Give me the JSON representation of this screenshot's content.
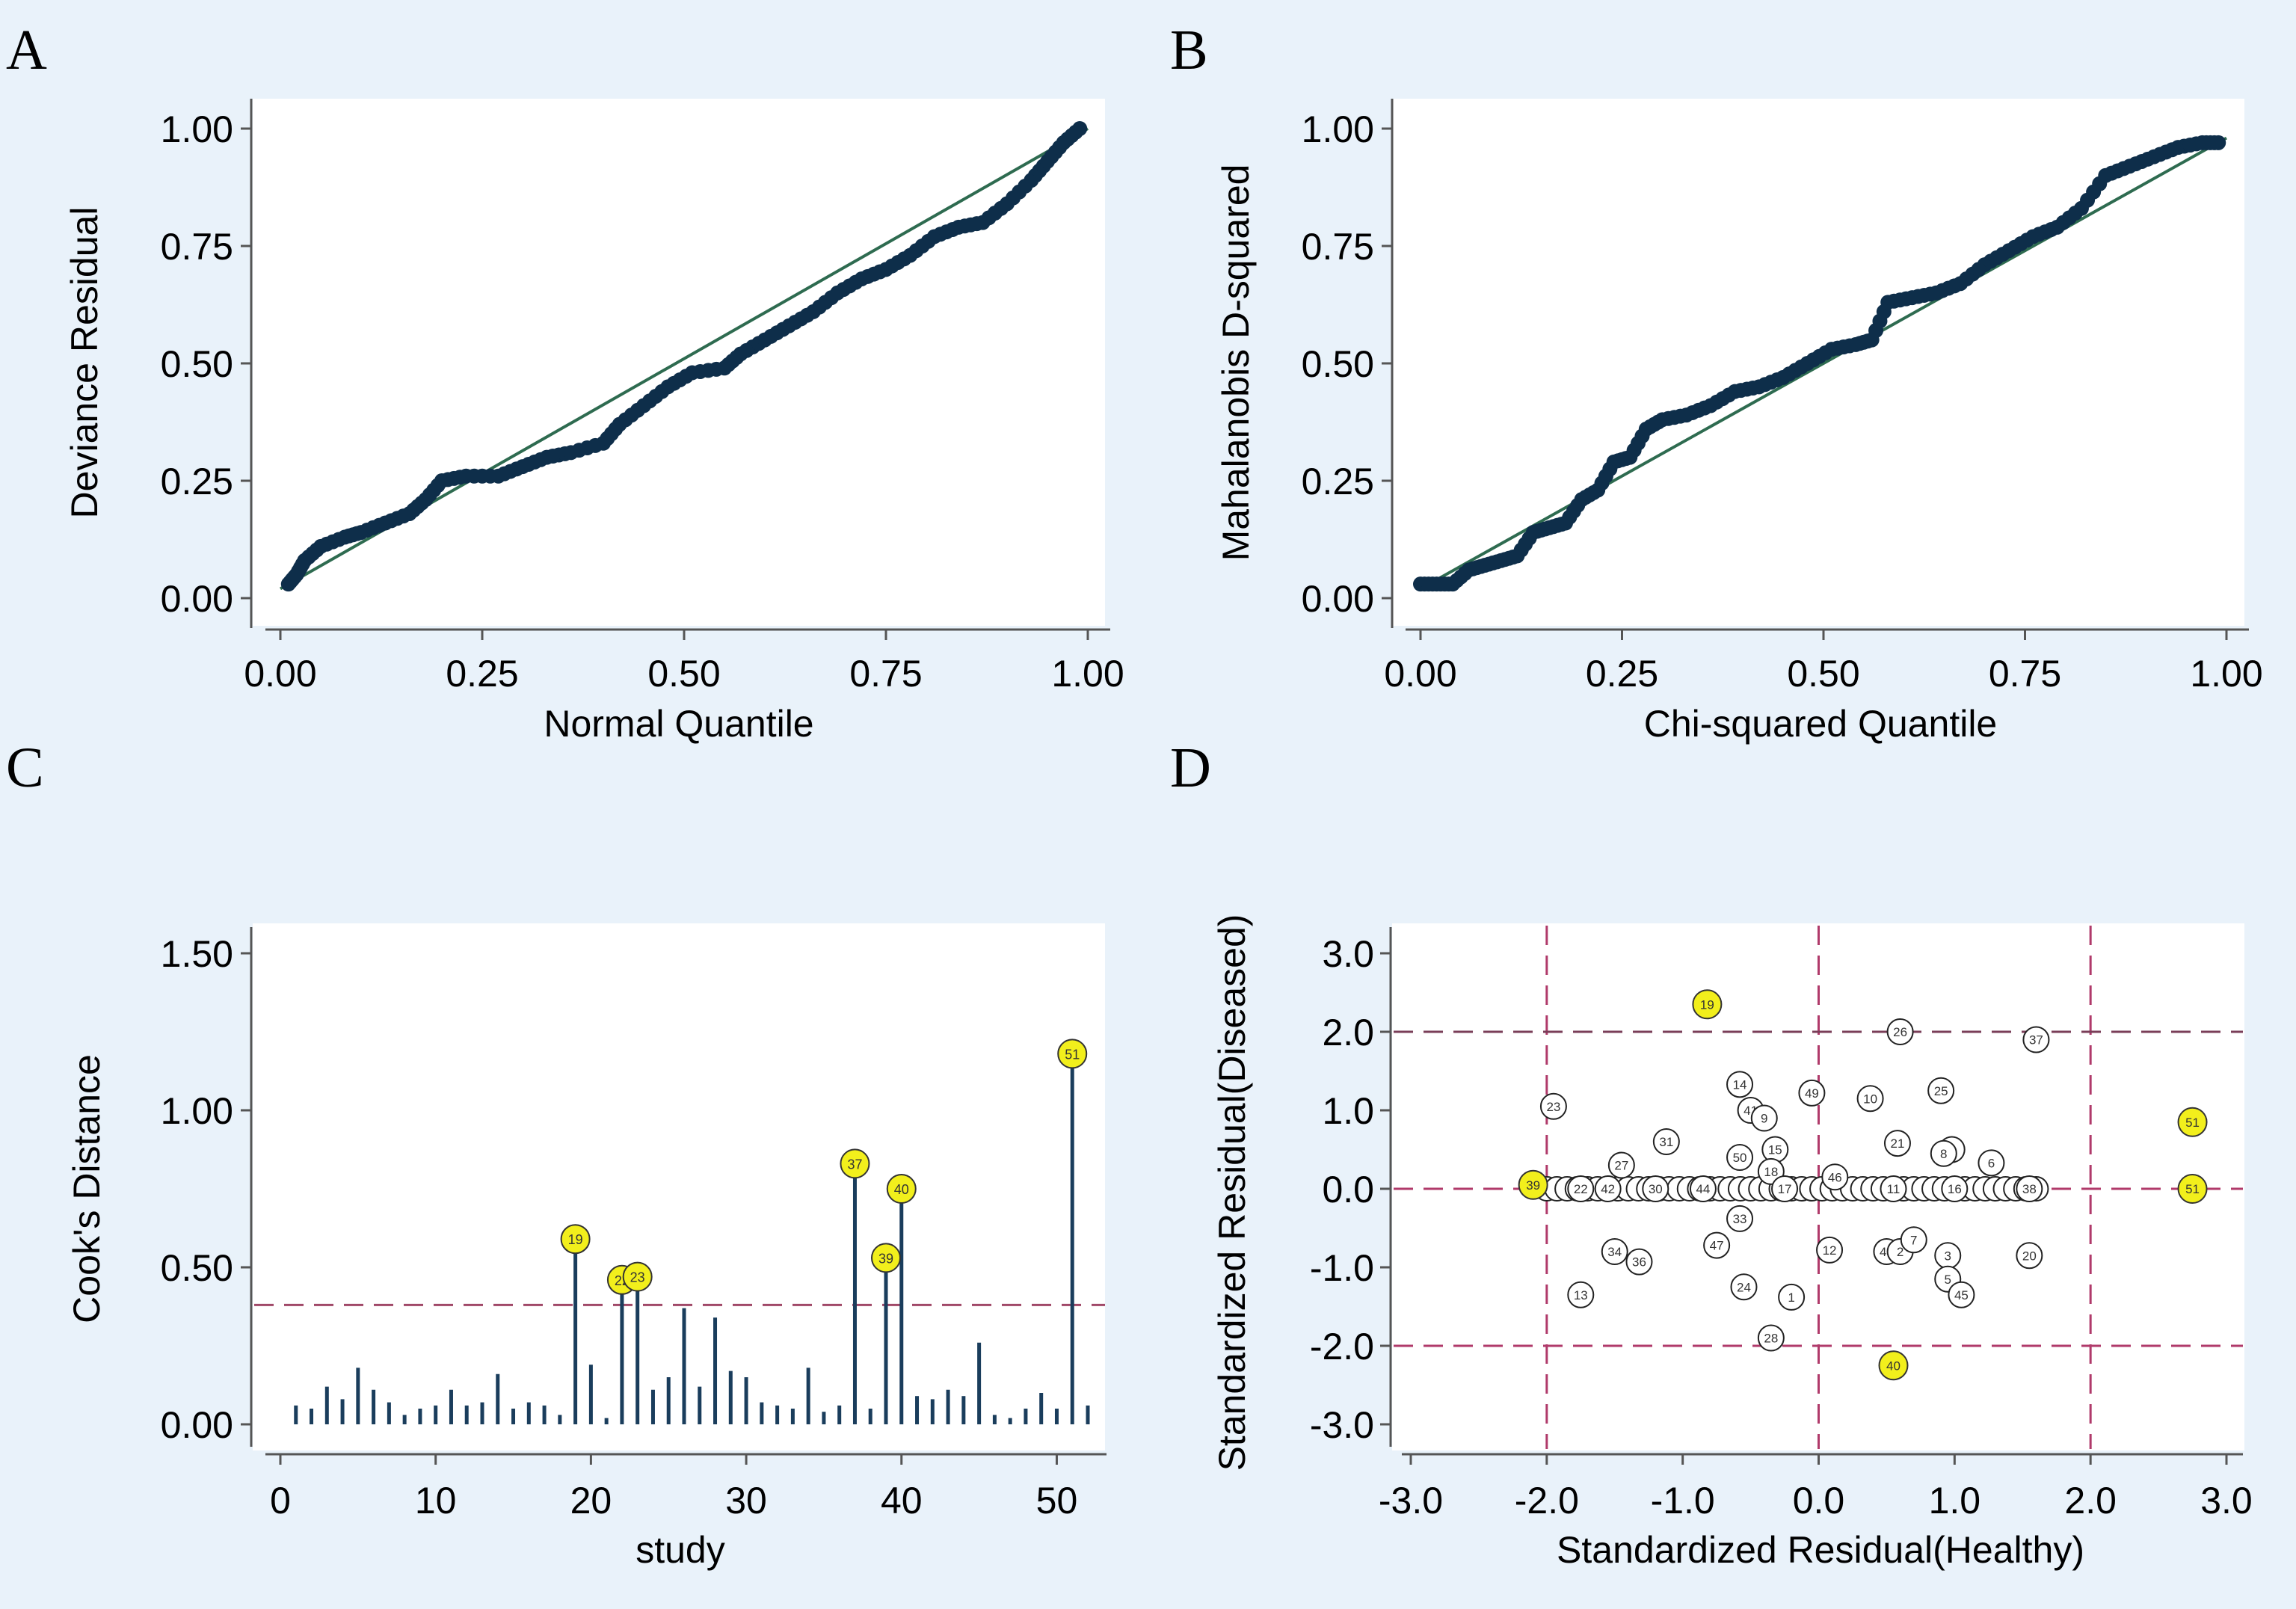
{
  "chart_data": [
    {
      "panel": "A",
      "type": "scatter",
      "xlabel": "Normal Quantile",
      "ylabel": "Deviance Residual",
      "xlim": [
        0,
        1
      ],
      "ylim": [
        0,
        1
      ],
      "xticks": [
        "0.00",
        "0.25",
        "0.50",
        "0.75",
        "1.00"
      ],
      "yticks": [
        "0.00",
        "0.25",
        "0.50",
        "0.75",
        "1.00"
      ],
      "reference_line": [
        [
          0,
          0.02
        ],
        [
          1,
          1.0
        ]
      ],
      "points": [
        [
          0.01,
          0.03
        ],
        [
          0.02,
          0.05
        ],
        [
          0.03,
          0.08
        ],
        [
          0.05,
          0.11
        ],
        [
          0.08,
          0.13
        ],
        [
          0.1,
          0.14
        ],
        [
          0.13,
          0.16
        ],
        [
          0.16,
          0.18
        ],
        [
          0.18,
          0.21
        ],
        [
          0.2,
          0.25
        ],
        [
          0.23,
          0.26
        ],
        [
          0.27,
          0.26
        ],
        [
          0.3,
          0.28
        ],
        [
          0.33,
          0.3
        ],
        [
          0.36,
          0.31
        ],
        [
          0.4,
          0.33
        ],
        [
          0.42,
          0.37
        ],
        [
          0.45,
          0.41
        ],
        [
          0.48,
          0.45
        ],
        [
          0.51,
          0.48
        ],
        [
          0.55,
          0.49
        ],
        [
          0.57,
          0.52
        ],
        [
          0.6,
          0.55
        ],
        [
          0.63,
          0.58
        ],
        [
          0.66,
          0.61
        ],
        [
          0.69,
          0.65
        ],
        [
          0.72,
          0.68
        ],
        [
          0.75,
          0.7
        ],
        [
          0.78,
          0.73
        ],
        [
          0.81,
          0.77
        ],
        [
          0.84,
          0.79
        ],
        [
          0.87,
          0.8
        ],
        [
          0.9,
          0.84
        ],
        [
          0.93,
          0.89
        ],
        [
          0.95,
          0.93
        ],
        [
          0.97,
          0.97
        ],
        [
          0.99,
          1.0
        ]
      ]
    },
    {
      "panel": "B",
      "type": "scatter",
      "xlabel": "Chi-squared Quantile",
      "ylabel": "Mahalanobis D-squared",
      "xlim": [
        0,
        1
      ],
      "ylim": [
        0,
        1
      ],
      "xticks": [
        "0.00",
        "0.25",
        "0.50",
        "0.75",
        "1.00"
      ],
      "yticks": [
        "0.00",
        "0.25",
        "0.50",
        "0.75",
        "1.00"
      ],
      "reference_line": [
        [
          0,
          0.02
        ],
        [
          1,
          0.98
        ]
      ],
      "points": [
        [
          0.0,
          0.03
        ],
        [
          0.02,
          0.03
        ],
        [
          0.04,
          0.03
        ],
        [
          0.06,
          0.06
        ],
        [
          0.08,
          0.07
        ],
        [
          0.1,
          0.08
        ],
        [
          0.12,
          0.09
        ],
        [
          0.14,
          0.14
        ],
        [
          0.16,
          0.15
        ],
        [
          0.18,
          0.16
        ],
        [
          0.2,
          0.21
        ],
        [
          0.22,
          0.23
        ],
        [
          0.24,
          0.29
        ],
        [
          0.26,
          0.3
        ],
        [
          0.28,
          0.36
        ],
        [
          0.3,
          0.38
        ],
        [
          0.33,
          0.39
        ],
        [
          0.36,
          0.41
        ],
        [
          0.39,
          0.44
        ],
        [
          0.42,
          0.45
        ],
        [
          0.45,
          0.47
        ],
        [
          0.48,
          0.5
        ],
        [
          0.51,
          0.53
        ],
        [
          0.54,
          0.54
        ],
        [
          0.56,
          0.55
        ],
        [
          0.58,
          0.63
        ],
        [
          0.61,
          0.64
        ],
        [
          0.64,
          0.65
        ],
        [
          0.67,
          0.67
        ],
        [
          0.7,
          0.71
        ],
        [
          0.73,
          0.74
        ],
        [
          0.76,
          0.77
        ],
        [
          0.79,
          0.79
        ],
        [
          0.82,
          0.83
        ],
        [
          0.85,
          0.9
        ],
        [
          0.88,
          0.92
        ],
        [
          0.91,
          0.94
        ],
        [
          0.94,
          0.96
        ],
        [
          0.97,
          0.97
        ],
        [
          0.99,
          0.97
        ]
      ]
    },
    {
      "panel": "C",
      "type": "bar",
      "xlabel": "study",
      "ylabel": "Cook's Distance",
      "xlim": [
        0,
        52
      ],
      "ylim": [
        0,
        1.5
      ],
      "xticks": [
        "0",
        "10",
        "20",
        "30",
        "40",
        "50"
      ],
      "yticks": [
        "0.00",
        "0.50",
        "1.00",
        "1.50"
      ],
      "threshold": 0.38,
      "values": [
        0.06,
        0.05,
        0.12,
        0.08,
        0.18,
        0.11,
        0.07,
        0.03,
        0.05,
        0.06,
        0.11,
        0.06,
        0.07,
        0.16,
        0.05,
        0.07,
        0.06,
        0.03,
        0.59,
        0.19,
        0.02,
        0.46,
        0.47,
        0.11,
        0.15,
        0.37,
        0.12,
        0.34,
        0.17,
        0.15,
        0.07,
        0.06,
        0.05,
        0.18,
        0.04,
        0.06,
        0.83,
        0.05,
        0.53,
        0.75,
        0.09,
        0.08,
        0.11,
        0.09,
        0.26,
        0.03,
        0.02,
        0.05,
        0.1,
        0.05,
        1.18,
        0.06
      ],
      "highlighted": [
        {
          "label": "19",
          "study": 19,
          "value": 0.59
        },
        {
          "label": "22",
          "study": 22,
          "value": 0.46
        },
        {
          "label": "23",
          "study": 23,
          "value": 0.47
        },
        {
          "label": "37",
          "study": 37,
          "value": 0.83
        },
        {
          "label": "39",
          "study": 39,
          "value": 0.53
        },
        {
          "label": "40",
          "study": 40,
          "value": 0.75
        },
        {
          "label": "51",
          "study": 51,
          "value": 1.18
        }
      ]
    },
    {
      "panel": "D",
      "type": "scatter",
      "xlabel": "Standardized Residual(Healthy)",
      "ylabel": "Standardized Residual(Diseased)",
      "xlim": [
        -3,
        3
      ],
      "ylim": [
        -3,
        3
      ],
      "xticks": [
        "-3.0",
        "-2.0",
        "-1.0",
        "0.0",
        "1.0",
        "2.0",
        "3.0"
      ],
      "yticks": [
        "3.0",
        "2.0",
        "1.0",
        "0.0",
        "-1.0",
        "-2.0",
        "-3.0"
      ],
      "reference_lines": {
        "x": [
          -2,
          0,
          2
        ],
        "y": [
          2,
          0,
          -2
        ]
      },
      "points": [
        {
          "label": "19",
          "x": -0.82,
          "y": 2.35,
          "hl": true
        },
        {
          "label": "26",
          "x": 0.6,
          "y": 2.0
        },
        {
          "label": "37",
          "x": 1.6,
          "y": 1.9
        },
        {
          "label": "23",
          "x": -1.95,
          "y": 1.05
        },
        {
          "label": "14",
          "x": -0.58,
          "y": 1.33
        },
        {
          "label": "49",
          "x": -0.05,
          "y": 1.22
        },
        {
          "label": "10",
          "x": 0.38,
          "y": 1.15
        },
        {
          "label": "25",
          "x": 0.9,
          "y": 1.25
        },
        {
          "label": "41",
          "x": -0.5,
          "y": 1.0
        },
        {
          "label": "9",
          "x": -0.4,
          "y": 0.9
        },
        {
          "label": "31",
          "x": -1.12,
          "y": 0.6
        },
        {
          "label": "21",
          "x": 0.58,
          "y": 0.58
        },
        {
          "label": "4",
          "x": 0.98,
          "y": 0.5
        },
        {
          "label": "8",
          "x": 0.92,
          "y": 0.45
        },
        {
          "label": "27",
          "x": -1.45,
          "y": 0.3
        },
        {
          "label": "50",
          "x": -0.58,
          "y": 0.4
        },
        {
          "label": "15",
          "x": -0.32,
          "y": 0.5
        },
        {
          "label": "6",
          "x": 1.27,
          "y": 0.33
        },
        {
          "label": "46",
          "x": 0.12,
          "y": 0.15
        },
        {
          "label": "18",
          "x": -0.35,
          "y": 0.22
        },
        {
          "label": "39",
          "x": -2.1,
          "y": 0.05,
          "hl": true
        },
        {
          "label": "22",
          "x": -1.75,
          "y": 0.0
        },
        {
          "label": "42",
          "x": -1.55,
          "y": 0.0
        },
        {
          "label": "30",
          "x": -1.2,
          "y": 0.0
        },
        {
          "label": "44",
          "x": -0.85,
          "y": 0.0
        },
        {
          "label": "17",
          "x": -0.25,
          "y": 0.0
        },
        {
          "label": "11",
          "x": 0.55,
          "y": 0.0
        },
        {
          "label": "16",
          "x": 1.0,
          "y": 0.0
        },
        {
          "label": "38",
          "x": 1.55,
          "y": 0.0
        },
        {
          "label": "33",
          "x": -0.58,
          "y": -0.38
        },
        {
          "label": "12",
          "x": 0.08,
          "y": -0.78
        },
        {
          "label": "47",
          "x": -0.75,
          "y": -0.72
        },
        {
          "label": "34",
          "x": -1.5,
          "y": -0.8
        },
        {
          "label": "36",
          "x": -1.32,
          "y": -0.93
        },
        {
          "label": "43",
          "x": 0.5,
          "y": -0.8
        },
        {
          "label": "2",
          "x": 0.6,
          "y": -0.8
        },
        {
          "label": "7",
          "x": 0.7,
          "y": -0.65
        },
        {
          "label": "3",
          "x": 0.95,
          "y": -0.85
        },
        {
          "label": "5",
          "x": 0.95,
          "y": -1.15
        },
        {
          "label": "45",
          "x": 1.05,
          "y": -1.35
        },
        {
          "label": "20",
          "x": 1.55,
          "y": -0.85
        },
        {
          "label": "24",
          "x": -0.55,
          "y": -1.25
        },
        {
          "label": "13",
          "x": -1.75,
          "y": -1.35
        },
        {
          "label": "1",
          "x": -0.2,
          "y": -1.38
        },
        {
          "label": "28",
          "x": -0.35,
          "y": -1.9
        },
        {
          "label": "40",
          "x": 0.55,
          "y": -2.25,
          "hl": true
        },
        {
          "label": "51",
          "x": 2.75,
          "y": 0.85,
          "hl": true
        },
        {
          "label": "51",
          "x": 2.75,
          "y": 0.0,
          "hl": true
        }
      ]
    }
  ]
}
